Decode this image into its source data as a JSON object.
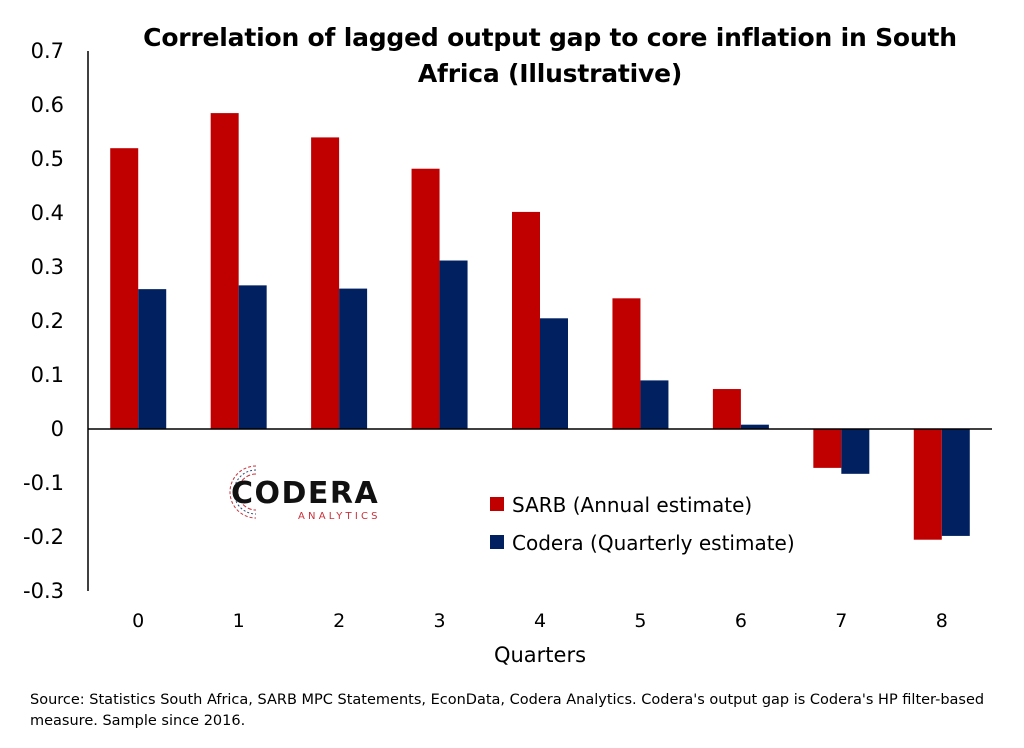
{
  "colors": {
    "sarb": "#c00000",
    "codera": "#002060",
    "logo_accent": "#c9303a",
    "logo_text": "#111111"
  },
  "chart_data": {
    "type": "bar",
    "title": "Correlation of lagged output gap to core inflation in South Africa (Illustrative)",
    "xlabel": "Quarters",
    "ylabel": "",
    "categories": [
      "0",
      "1",
      "2",
      "3",
      "4",
      "5",
      "6",
      "7",
      "8"
    ],
    "series": [
      {
        "name": "SARB (Annual estimate)",
        "values": [
          0.52,
          0.585,
          0.54,
          0.482,
          0.402,
          0.242,
          0.074,
          -0.072,
          -0.205
        ]
      },
      {
        "name": "Codera (Quarterly estimate)",
        "values": [
          0.259,
          0.266,
          0.26,
          0.312,
          0.205,
          0.09,
          0.008,
          -0.083,
          -0.198
        ]
      }
    ],
    "ylim": [
      -0.3,
      0.7
    ],
    "yticks": [
      "0.7",
      "0.6",
      "0.5",
      "0.4",
      "0.3",
      "0.2",
      "0.1",
      "0",
      "-0.1",
      "-0.2",
      "-0.3"
    ],
    "ytick_values": [
      0.7,
      0.6,
      0.5,
      0.4,
      0.3,
      0.2,
      0.1,
      0,
      -0.1,
      -0.2,
      -0.3
    ],
    "grid": false,
    "legend_position": "bottom-right"
  },
  "logo": {
    "name": "CODERA",
    "tagline": "ANALYTICS",
    "icon": "codera-arc-icon"
  },
  "source_note": "Source: Statistics South Africa, SARB MPC Statements, EconData, Codera Analytics. Codera's output gap is Codera's HP filter-based measure. Sample since 2016."
}
